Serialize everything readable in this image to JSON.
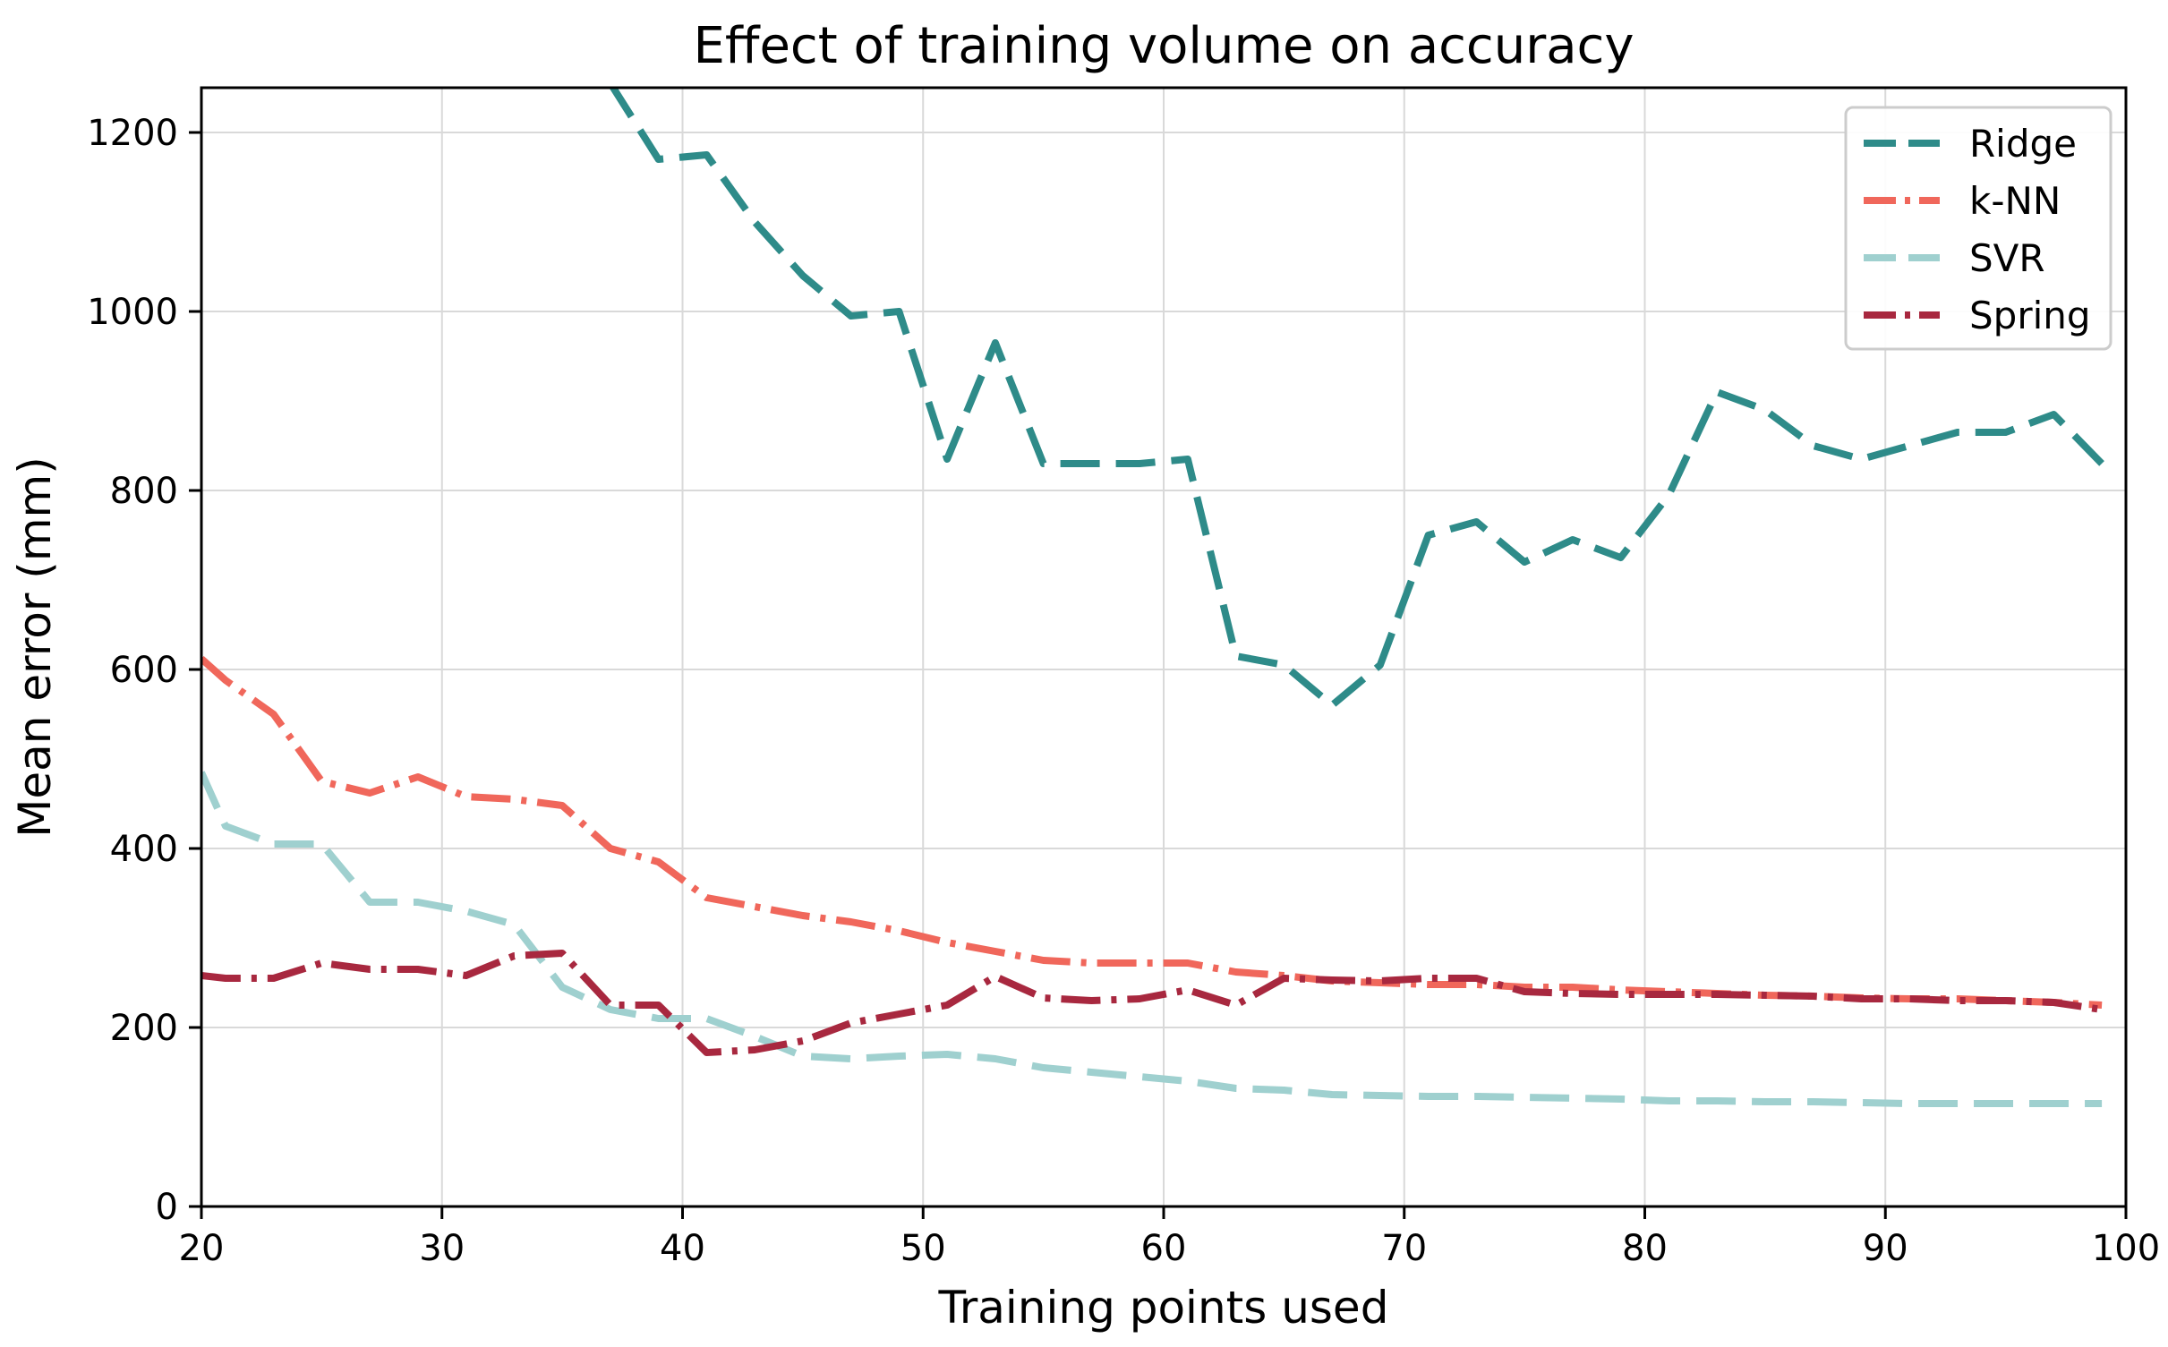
{
  "chart_data": {
    "type": "line",
    "title": "Effect of training volume on accuracy",
    "xlabel": "Training points used",
    "ylabel": "Mean error (mm)",
    "xlim": [
      20,
      100
    ],
    "ylim": [
      0,
      1250
    ],
    "xticks": [
      20,
      30,
      40,
      50,
      60,
      70,
      80,
      90,
      100
    ],
    "yticks": [
      0,
      200,
      400,
      600,
      800,
      1000,
      1200
    ],
    "grid": true,
    "legend_position": "top-right",
    "x": [
      20,
      21,
      23,
      25,
      27,
      29,
      31,
      33,
      35,
      37,
      39,
      41,
      43,
      45,
      47,
      49,
      51,
      53,
      55,
      57,
      59,
      61,
      63,
      65,
      67,
      69,
      71,
      73,
      75,
      77,
      79,
      81,
      83,
      85,
      87,
      89,
      91,
      93,
      95,
      97,
      99
    ],
    "series": [
      {
        "name": "Ridge",
        "color": "#2e8b89",
        "style": "dashed",
        "values": [
          null,
          null,
          null,
          null,
          null,
          null,
          null,
          null,
          null,
          1255,
          1170,
          1175,
          1100,
          1040,
          995,
          1000,
          835,
          965,
          830,
          830,
          830,
          835,
          615,
          605,
          560,
          605,
          750,
          765,
          720,
          745,
          725,
          795,
          910,
          890,
          850,
          835,
          850,
          865,
          865,
          885,
          830
        ]
      },
      {
        "name": "k-NN",
        "color": "#f0675b",
        "style": "dashdot",
        "values": [
          612,
          588,
          550,
          475,
          462,
          480,
          458,
          455,
          448,
          400,
          385,
          345,
          335,
          325,
          318,
          308,
          295,
          285,
          275,
          272,
          272,
          272,
          262,
          258,
          252,
          250,
          248,
          248,
          245,
          245,
          242,
          240,
          238,
          236,
          235,
          233,
          232,
          232,
          230,
          228,
          225
        ]
      },
      {
        "name": "SVR",
        "color": "#9fd0cf",
        "style": "dashed",
        "values": [
          485,
          425,
          405,
          405,
          340,
          340,
          330,
          315,
          245,
          220,
          210,
          210,
          190,
          168,
          165,
          168,
          170,
          165,
          155,
          150,
          145,
          140,
          132,
          130,
          125,
          124,
          123,
          123,
          122,
          121,
          120,
          118,
          118,
          117,
          117,
          116,
          115,
          115,
          115,
          115,
          115
        ]
      },
      {
        "name": "Spring",
        "color": "#a8283f",
        "style": "dashdot",
        "values": [
          258,
          255,
          255,
          272,
          265,
          265,
          258,
          280,
          283,
          225,
          225,
          172,
          175,
          185,
          205,
          215,
          225,
          257,
          233,
          230,
          232,
          242,
          225,
          255,
          253,
          252,
          255,
          255,
          240,
          238,
          237,
          237,
          237,
          236,
          235,
          232,
          232,
          230,
          230,
          228,
          220
        ]
      }
    ]
  }
}
